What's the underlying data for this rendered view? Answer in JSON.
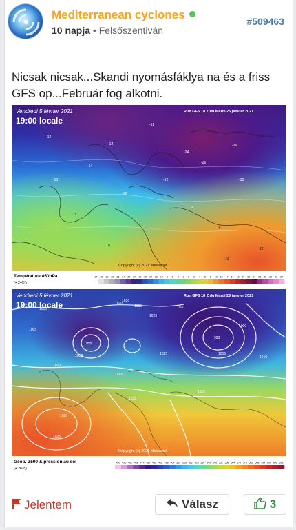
{
  "post": {
    "username": "Mediterranean cyclones",
    "age": "10 napja",
    "location": "Felsőszentiván",
    "separator": "•",
    "post_id": "#509463",
    "text": "Nicsak nicsak...Skandi nyomásfáklya na és a friss GFS op...Február fog alkotni."
  },
  "map1": {
    "date_line": "Vendredi 5 février 2021",
    "time_line": "19:00 locale",
    "run_line": "Run GFS 18 Z du Mardi 26 janvier 2021",
    "caption": "Température 850hPa",
    "caption_sub": "(+ 240h)",
    "copyright": "Copyright (c) 2021 Meteociel",
    "scale": [
      "-34",
      "-32",
      "-30",
      "-28",
      "-26",
      "-24",
      "-22",
      "-20",
      "-18",
      "-16",
      "-14",
      "-12",
      "-10",
      "-8",
      "-6",
      "-4",
      "-2",
      "0",
      "2",
      "4",
      "6",
      "8",
      "10",
      "12",
      "14",
      "16",
      "18",
      "20",
      "22",
      "24",
      "26",
      "28",
      "30",
      "32",
      "34"
    ],
    "labels": [
      "-26",
      "-12",
      "-12",
      "-24",
      "-16",
      "-12",
      "-14",
      "-12",
      "-10",
      "-12",
      "-12",
      "-4",
      "0",
      "4",
      "8",
      "12",
      "13"
    ]
  },
  "map2": {
    "date_line": "Vendredi 5 février 2021",
    "time_line": "19:00 locale",
    "run_line": "Run GFS 18 Z du Mardi 26 janvier 2021",
    "caption": "Géop. Z500 & pression au sol",
    "caption_sub": "(+ 240h)",
    "copyright": "Copyright (c) 2021 Meteociel",
    "scale": [
      "450",
      "456",
      "462",
      "468",
      "474",
      "480",
      "486",
      "492",
      "498",
      "504",
      "510",
      "516",
      "522",
      "528",
      "534",
      "540",
      "546",
      "552",
      "558",
      "564",
      "570",
      "576",
      "582",
      "588",
      "594",
      "600",
      "606",
      "612"
    ],
    "labels": [
      "1015",
      "1020",
      "1025",
      "1030",
      "1035",
      "995",
      "1000",
      "1005",
      "1010",
      "1015",
      "1020",
      "1025",
      "990",
      "1000",
      "1005",
      "1010",
      "1015",
      "1020",
      "1025",
      "1015"
    ]
  },
  "footer": {
    "report_label": "Jelentem",
    "reply_label": "Válasz",
    "like_count": "3"
  },
  "colors": {
    "username": "#f5a623",
    "online": "#5cc05c",
    "post_id": "#4a7ba8",
    "report": "#c0392b",
    "like": "#2e8b3e"
  }
}
